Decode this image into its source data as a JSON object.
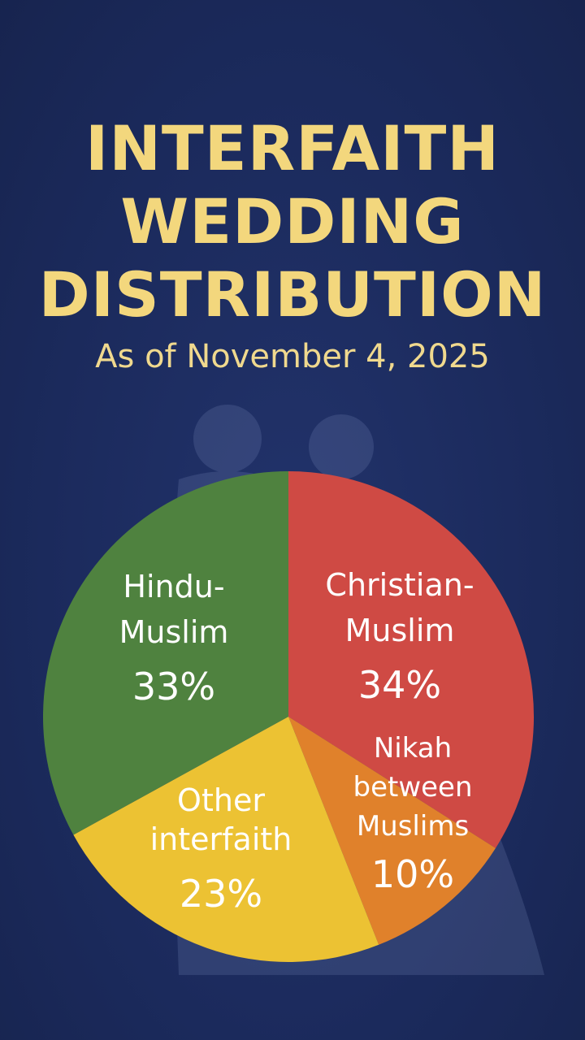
{
  "title_lines": [
    "INTERFAITH",
    "WEDDING",
    "DISTRIBUTION"
  ],
  "subtitle": "As of November 4, 2025",
  "colors": {
    "background": "#1b2a5c",
    "title": "#f3d77d"
  },
  "chart_data": {
    "type": "pie",
    "title": "INTERFAITH WEDDING DISTRIBUTION",
    "subtitle": "As of November 4, 2025",
    "slices": [
      {
        "label_lines": [
          "Christian-",
          "Muslim"
        ],
        "value": 34,
        "display": "34%",
        "color": "#cf4a44"
      },
      {
        "label_lines": [
          "Nikah",
          "between",
          "Muslims"
        ],
        "value": 10,
        "display": "10%",
        "color": "#e0812b"
      },
      {
        "label_lines": [
          "Other",
          "interfaith"
        ],
        "value": 23,
        "display": "23%",
        "color": "#ecc233"
      },
      {
        "label_lines": [
          "Hindu-",
          "Muslim"
        ],
        "value": 33,
        "display": "33%",
        "color": "#4f823f"
      }
    ]
  }
}
